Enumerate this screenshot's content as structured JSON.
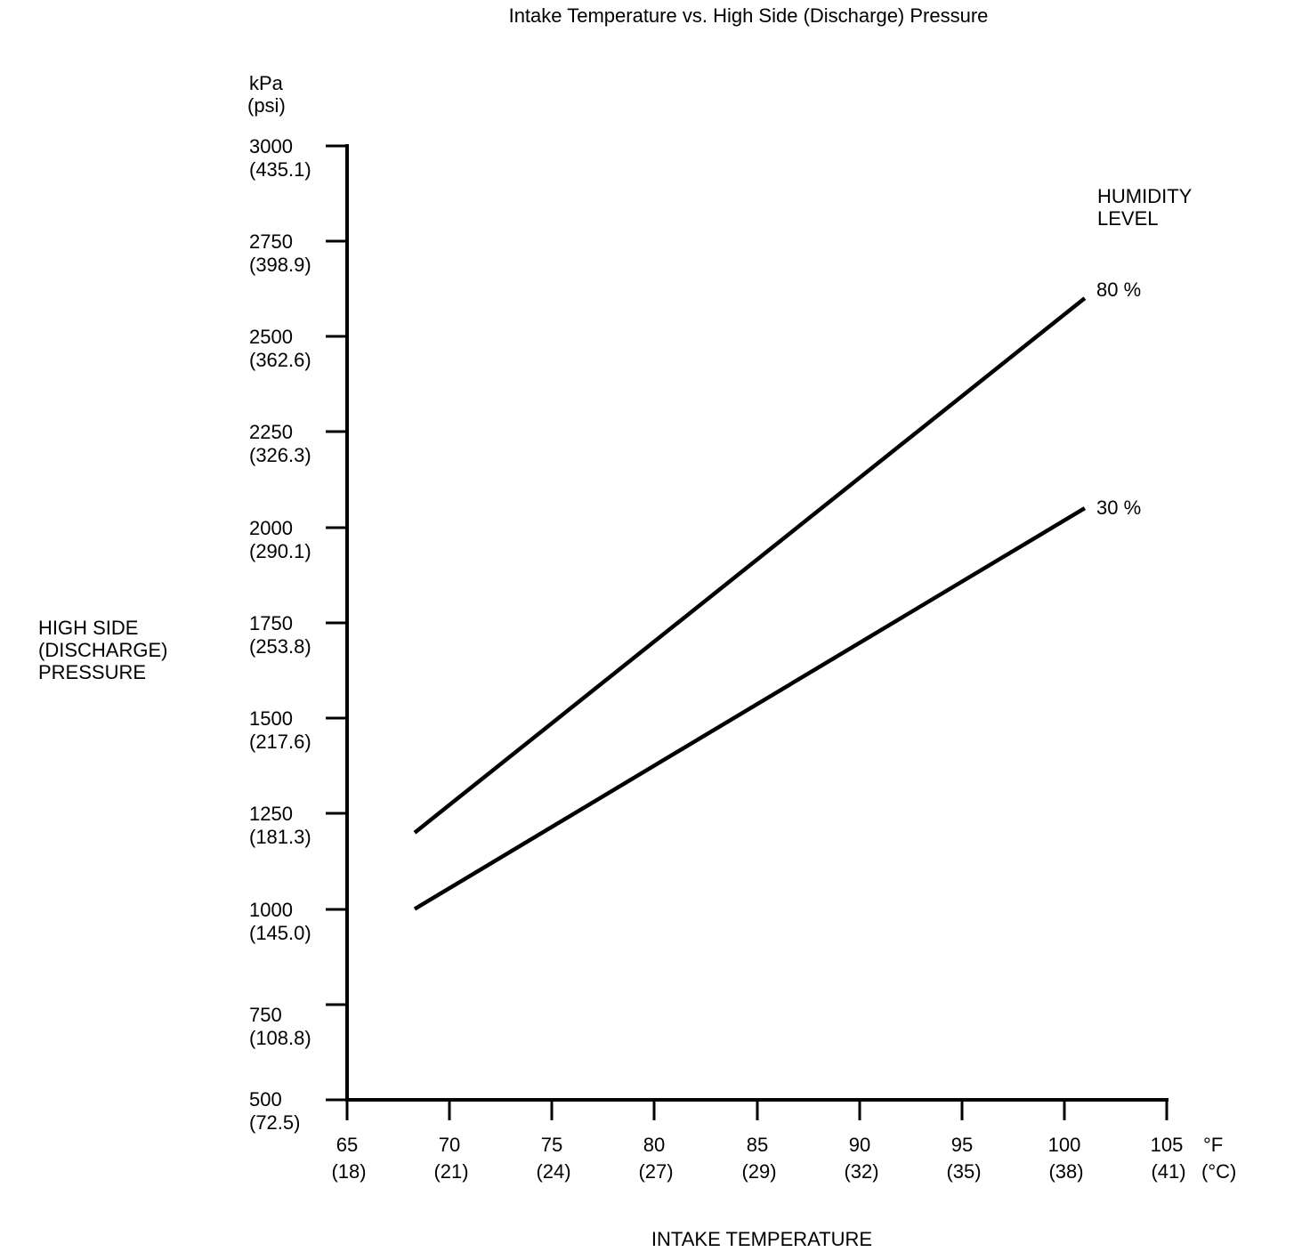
{
  "title": "Intake Temperature vs. High Side (Discharge) Pressure",
  "y_axis": {
    "unit_primary": "kPa",
    "unit_secondary": "(psi)",
    "label_lines": [
      "HIGH SIDE",
      "(DISCHARGE)",
      "PRESSURE"
    ],
    "ticks": [
      {
        "kpa": "3000",
        "psi": "(435.1)"
      },
      {
        "kpa": "2750",
        "psi": "(398.9)"
      },
      {
        "kpa": "2500",
        "psi": "(362.6)"
      },
      {
        "kpa": "2250",
        "psi": "(326.3)"
      },
      {
        "kpa": "2000",
        "psi": "(290.1)"
      },
      {
        "kpa": "1750",
        "psi": "(253.8)"
      },
      {
        "kpa": "1500",
        "psi": "(217.6)"
      },
      {
        "kpa": "1250",
        "psi": "(181.3)"
      },
      {
        "kpa": "1000",
        "psi": "(145.0)"
      },
      {
        "kpa": "750",
        "psi": "(108.8)"
      },
      {
        "kpa": "500",
        "psi": "(72.5)"
      }
    ]
  },
  "x_axis": {
    "label": "INTAKE TEMPERATURE",
    "unit_primary": "°F",
    "unit_secondary": "(°C)",
    "ticks": [
      {
        "f": "65",
        "c": "(18)"
      },
      {
        "f": "70",
        "c": "(21)"
      },
      {
        "f": "75",
        "c": "(24)"
      },
      {
        "f": "80",
        "c": "(27)"
      },
      {
        "f": "85",
        "c": "(29)"
      },
      {
        "f": "90",
        "c": "(32)"
      },
      {
        "f": "95",
        "c": "(35)"
      },
      {
        "f": "100",
        "c": "(38)"
      },
      {
        "f": "105",
        "c": "(41)"
      }
    ]
  },
  "legend": {
    "lines": [
      "HUMIDITY",
      "LEVEL"
    ]
  },
  "colors": {
    "foreground": "#000000",
    "background": "#ffffff"
  },
  "chart_data": {
    "type": "line",
    "title": "Intake Temperature vs. High Side (Discharge) Pressure",
    "xlabel": "INTAKE TEMPERATURE",
    "ylabel": "HIGH SIDE (DISCHARGE) PRESSURE",
    "x_units": [
      "°F",
      "°C"
    ],
    "y_units": [
      "kPa",
      "psi"
    ],
    "xlim": [
      65,
      105
    ],
    "ylim": [
      500,
      3000
    ],
    "grid": false,
    "legend_title": "HUMIDITY LEVEL",
    "legend_position": "upper-right",
    "x_ticks_f": [
      65,
      70,
      75,
      80,
      85,
      90,
      95,
      100,
      105
    ],
    "x_ticks_c": [
      18,
      21,
      24,
      27,
      29,
      32,
      35,
      38,
      41
    ],
    "y_ticks_kpa": [
      500,
      750,
      1000,
      1250,
      1500,
      1750,
      2000,
      2250,
      2500,
      2750,
      3000
    ],
    "y_ticks_psi": [
      72.5,
      108.8,
      145.0,
      181.3,
      217.6,
      253.8,
      290.1,
      326.3,
      362.6,
      398.9,
      435.1
    ],
    "series": [
      {
        "name": "80 %",
        "x": [
          68.3,
          101.0
        ],
        "y": [
          1200,
          2600
        ]
      },
      {
        "name": "30 %",
        "x": [
          68.3,
          101.0
        ],
        "y": [
          1000,
          2050
        ]
      }
    ]
  }
}
